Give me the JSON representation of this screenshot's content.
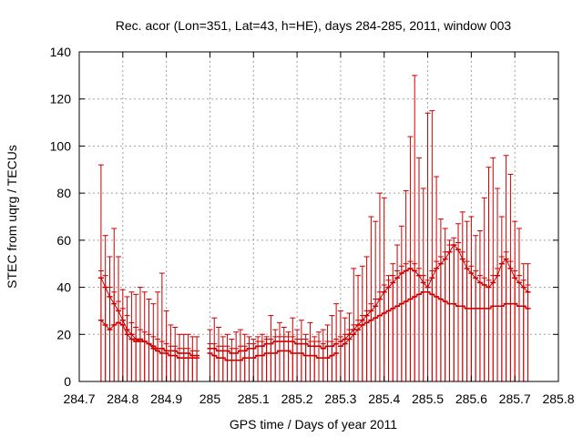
{
  "chart_data": {
    "type": "scatter",
    "title": "Rec. acor (Lon=351, Lat=43, h=HE), days 284-285, 2011, window 003",
    "xlabel": "GPS time / Days of year 2011",
    "ylabel": "STEC from uqrg / TECUs",
    "xlim": [
      284.7,
      285.8
    ],
    "ylim": [
      0,
      140
    ],
    "grid": true,
    "legend": "none",
    "color": "#cc0000",
    "xticks": [
      {
        "v": 284.7,
        "label": "284.7"
      },
      {
        "v": 284.8,
        "label": "284.8"
      },
      {
        "v": 284.9,
        "label": "284.9"
      },
      {
        "v": 285.0,
        "label": "285"
      },
      {
        "v": 285.1,
        "label": "285.1"
      },
      {
        "v": 285.2,
        "label": "285.2"
      },
      {
        "v": 285.3,
        "label": "285.3"
      },
      {
        "v": 285.4,
        "label": "285.4"
      },
      {
        "v": 285.5,
        "label": "285.5"
      },
      {
        "v": 285.6,
        "label": "285.6"
      },
      {
        "v": 285.7,
        "label": "285.7"
      },
      {
        "v": 285.8,
        "label": "285.8"
      }
    ],
    "yticks": [
      {
        "v": 0,
        "label": "0"
      },
      {
        "v": 20,
        "label": "20"
      },
      {
        "v": 40,
        "label": "40"
      },
      {
        "v": 60,
        "label": "60"
      },
      {
        "v": 80,
        "label": "80"
      },
      {
        "v": 100,
        "label": "100"
      },
      {
        "v": 120,
        "label": "120"
      },
      {
        "v": 140,
        "label": "140"
      }
    ],
    "series": [
      {
        "x": [
          284.75,
          284.76,
          284.77,
          284.78,
          284.79,
          284.8,
          284.81,
          284.82,
          284.83,
          284.84,
          284.85,
          284.86,
          284.87,
          284.88,
          284.89,
          284.9,
          284.91,
          284.92,
          284.93,
          284.94,
          284.95,
          284.96,
          284.97
        ],
        "y": [
          26,
          24,
          22,
          24,
          25,
          24,
          20,
          18,
          17,
          18,
          17,
          16,
          14,
          13,
          12,
          12,
          11,
          11,
          10,
          10,
          10,
          10,
          10
        ],
        "upper": [
          92,
          62,
          53,
          65,
          53,
          39,
          36,
          38,
          37,
          40,
          38,
          35,
          33,
          38,
          46,
          30,
          24,
          23,
          20,
          20,
          20,
          19,
          19
        ]
      },
      {
        "x": [
          284.75,
          284.76,
          284.77,
          284.78,
          284.79,
          284.8,
          284.81,
          284.82,
          284.83,
          284.84,
          284.85,
          284.86,
          284.87,
          284.88,
          284.89,
          284.9,
          284.91,
          284.92,
          284.93,
          284.94,
          284.95,
          284.96,
          284.97
        ],
        "y": [
          44,
          40,
          36,
          33,
          30,
          26,
          22,
          20,
          18,
          17,
          17,
          16,
          15,
          14,
          14,
          13,
          13,
          13,
          12,
          12,
          12,
          11,
          11
        ],
        "upper": [
          47,
          45,
          40,
          38,
          34,
          31,
          28,
          25,
          23,
          22,
          21,
          20,
          19,
          18,
          17,
          16,
          15,
          15,
          14,
          14,
          14,
          13,
          13
        ]
      },
      {
        "x": [
          285.0,
          285.01,
          285.02,
          285.03,
          285.04,
          285.05,
          285.06,
          285.07,
          285.08,
          285.09,
          285.1,
          285.11,
          285.12,
          285.13,
          285.14,
          285.15,
          285.16,
          285.17,
          285.18,
          285.19,
          285.2,
          285.21,
          285.22,
          285.23,
          285.24,
          285.25,
          285.26,
          285.27,
          285.28,
          285.29
        ],
        "y": [
          12,
          11,
          10,
          10,
          9,
          9,
          9,
          9,
          10,
          10,
          10,
          11,
          11,
          12,
          12,
          12,
          13,
          13,
          13,
          12,
          12,
          12,
          11,
          11,
          11,
          10,
          10,
          10,
          11,
          12
        ],
        "upper": [
          22,
          27,
          23,
          19,
          20,
          18,
          21,
          22,
          20,
          19,
          18,
          19,
          20,
          19,
          28,
          22,
          25,
          23,
          21,
          27,
          22,
          26,
          20,
          25,
          19,
          21,
          22,
          24,
          28,
          33
        ]
      },
      {
        "x": [
          285.0,
          285.01,
          285.02,
          285.03,
          285.04,
          285.05,
          285.06,
          285.07,
          285.08,
          285.09,
          285.1,
          285.11,
          285.12,
          285.13,
          285.14,
          285.15,
          285.16,
          285.17,
          285.18,
          285.19,
          285.2,
          285.21,
          285.22,
          285.23,
          285.24,
          285.25,
          285.26,
          285.27,
          285.28,
          285.29
        ],
        "y": [
          14,
          14,
          13,
          13,
          13,
          12,
          12,
          13,
          13,
          14,
          14,
          15,
          15,
          16,
          16,
          17,
          17,
          17,
          17,
          17,
          16,
          16,
          16,
          15,
          15,
          15,
          14,
          15,
          15,
          16
        ],
        "upper": [
          16,
          16,
          15,
          15,
          15,
          14,
          14,
          15,
          15,
          16,
          16,
          17,
          17,
          18,
          18,
          19,
          19,
          19,
          19,
          19,
          18,
          18,
          18,
          17,
          17,
          17,
          16,
          17,
          17,
          18
        ]
      },
      {
        "x": [
          285.3,
          285.31,
          285.32,
          285.33,
          285.34,
          285.35,
          285.36,
          285.37,
          285.38,
          285.39,
          285.4,
          285.41,
          285.42,
          285.43,
          285.44,
          285.45,
          285.46,
          285.47,
          285.48,
          285.49,
          285.5,
          285.51,
          285.52,
          285.53,
          285.54,
          285.55,
          285.56,
          285.57,
          285.58,
          285.59,
          285.6,
          285.61,
          285.62,
          285.63,
          285.64,
          285.65,
          285.66,
          285.67,
          285.68,
          285.69,
          285.7,
          285.71,
          285.72,
          285.73
        ],
        "y": [
          15,
          16,
          18,
          20,
          22,
          24,
          25,
          26,
          27,
          28,
          29,
          30,
          31,
          32,
          33,
          34,
          35,
          36,
          37,
          38,
          38,
          37,
          36,
          35,
          34,
          33,
          33,
          32,
          32,
          31,
          31,
          31,
          31,
          31,
          31,
          32,
          32,
          32,
          33,
          33,
          33,
          32,
          32,
          31
        ],
        "upper": [
          30,
          27,
          29,
          48,
          45,
          49,
          53,
          70,
          68,
          80,
          78,
          45,
          50,
          58,
          66,
          81,
          104,
          130,
          95,
          82,
          114,
          115,
          87,
          69,
          65,
          60,
          58,
          67,
          72,
          68,
          70,
          62,
          64,
          78,
          91,
          95,
          82,
          70,
          96,
          88,
          68,
          65,
          50,
          50
        ]
      },
      {
        "x": [
          285.3,
          285.31,
          285.32,
          285.33,
          285.34,
          285.35,
          285.36,
          285.37,
          285.38,
          285.39,
          285.4,
          285.41,
          285.42,
          285.43,
          285.44,
          285.45,
          285.46,
          285.47,
          285.48,
          285.49,
          285.5,
          285.51,
          285.52,
          285.53,
          285.54,
          285.55,
          285.56,
          285.57,
          285.58,
          285.59,
          285.6,
          285.61,
          285.62,
          285.63,
          285.64,
          285.65,
          285.66,
          285.67,
          285.68,
          285.69,
          285.7,
          285.71,
          285.72,
          285.73
        ],
        "y": [
          17,
          18,
          20,
          22,
          24,
          26,
          28,
          30,
          32,
          35,
          38,
          40,
          42,
          44,
          46,
          47,
          48,
          47,
          45,
          42,
          40,
          44,
          48,
          50,
          52,
          55,
          58,
          56,
          52,
          48,
          46,
          44,
          42,
          41,
          40,
          42,
          45,
          50,
          52,
          48,
          44,
          42,
          40,
          38
        ],
        "upper": [
          19,
          20,
          22,
          24,
          26,
          28,
          30,
          33,
          35,
          38,
          41,
          43,
          45,
          47,
          49,
          50,
          51,
          50,
          48,
          45,
          43,
          47,
          51,
          53,
          55,
          58,
          61,
          59,
          55,
          51,
          49,
          47,
          45,
          44,
          43,
          45,
          48,
          53,
          55,
          51,
          47,
          45,
          43,
          41
        ]
      }
    ]
  }
}
